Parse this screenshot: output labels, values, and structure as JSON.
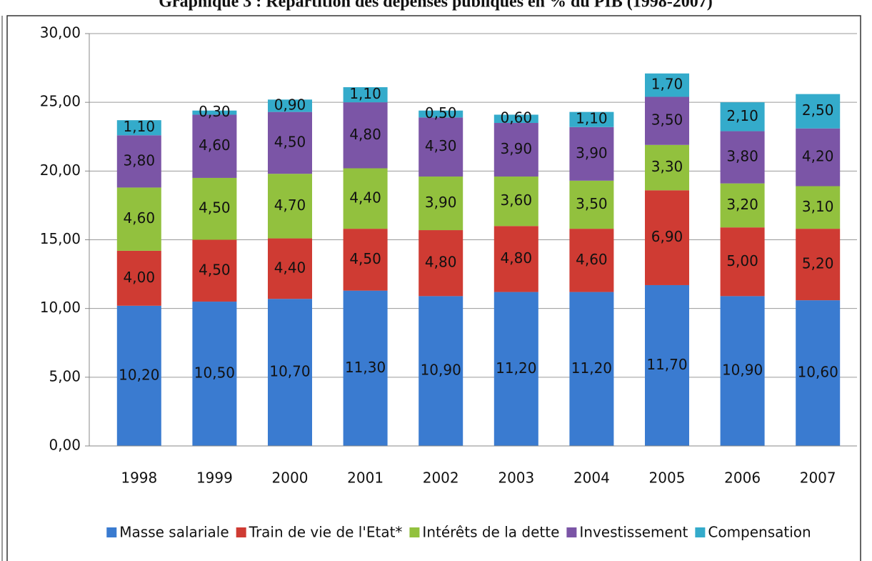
{
  "chart_data": {
    "type": "stacked_bar",
    "title": "Graphique 3 : Répartition des dépenses publiques en % du PIB (1998-2007)",
    "categories": [
      "1998",
      "1999",
      "2000",
      "2001",
      "2002",
      "2003",
      "2004",
      "2005",
      "2006",
      "2007"
    ],
    "series": [
      {
        "name": "Masse salariale",
        "color": "#3a7bd0",
        "values": [
          10.2,
          10.5,
          10.7,
          11.3,
          10.9,
          11.2,
          11.2,
          11.7,
          10.9,
          10.6
        ],
        "value_labels": [
          "10,20",
          "10,50",
          "10,70",
          "11,30",
          "10,90",
          "11,20",
          "11,20",
          "11,70",
          "10,90",
          "10,60"
        ]
      },
      {
        "name": "Train de vie de l'Etat*",
        "color": "#cf3b33",
        "values": [
          4.0,
          4.5,
          4.4,
          4.5,
          4.8,
          4.8,
          4.6,
          6.9,
          5.0,
          5.2
        ],
        "value_labels": [
          "4,00",
          "4,50",
          "4,40",
          "4,50",
          "4,80",
          "4,80",
          "4,60",
          "6,90",
          "5,00",
          "5,20"
        ]
      },
      {
        "name": "Intérêts de la dette",
        "color": "#92c13e",
        "values": [
          4.6,
          4.5,
          4.7,
          4.4,
          3.9,
          3.6,
          3.5,
          3.3,
          3.2,
          3.1
        ],
        "value_labels": [
          "4,60",
          "4,50",
          "4,70",
          "4,40",
          "3,90",
          "3,60",
          "3,50",
          "3,30",
          "3,20",
          "3,10"
        ]
      },
      {
        "name": "Investissement",
        "color": "#7b55a6",
        "values": [
          3.8,
          4.6,
          4.5,
          4.8,
          4.3,
          3.9,
          3.9,
          3.5,
          3.8,
          4.2
        ],
        "value_labels": [
          "3,80",
          "4,60",
          "4,50",
          "4,80",
          "4,30",
          "3,90",
          "3,90",
          "3,50",
          "3,80",
          "4,20"
        ]
      },
      {
        "name": "Compensation",
        "color": "#34abcb",
        "values": [
          1.1,
          0.3,
          0.9,
          1.1,
          0.5,
          0.6,
          1.1,
          1.7,
          2.1,
          2.5
        ],
        "value_labels": [
          "1,10",
          "0,30",
          "0,90",
          "1,10",
          "0,50",
          "0,60",
          "1,10",
          "1,70",
          "2,10",
          "2,50"
        ]
      }
    ],
    "ylim": [
      0,
      30
    ],
    "yticks": [
      {
        "value": 0,
        "label": "0,00"
      },
      {
        "value": 5,
        "label": "5,00"
      },
      {
        "value": 10,
        "label": "10,00"
      },
      {
        "value": 15,
        "label": "15,00"
      },
      {
        "value": 20,
        "label": "20,00"
      },
      {
        "value": 25,
        "label": "25,00"
      },
      {
        "value": 30,
        "label": "30,00"
      }
    ],
    "grid": true,
    "legend": "bottom"
  }
}
